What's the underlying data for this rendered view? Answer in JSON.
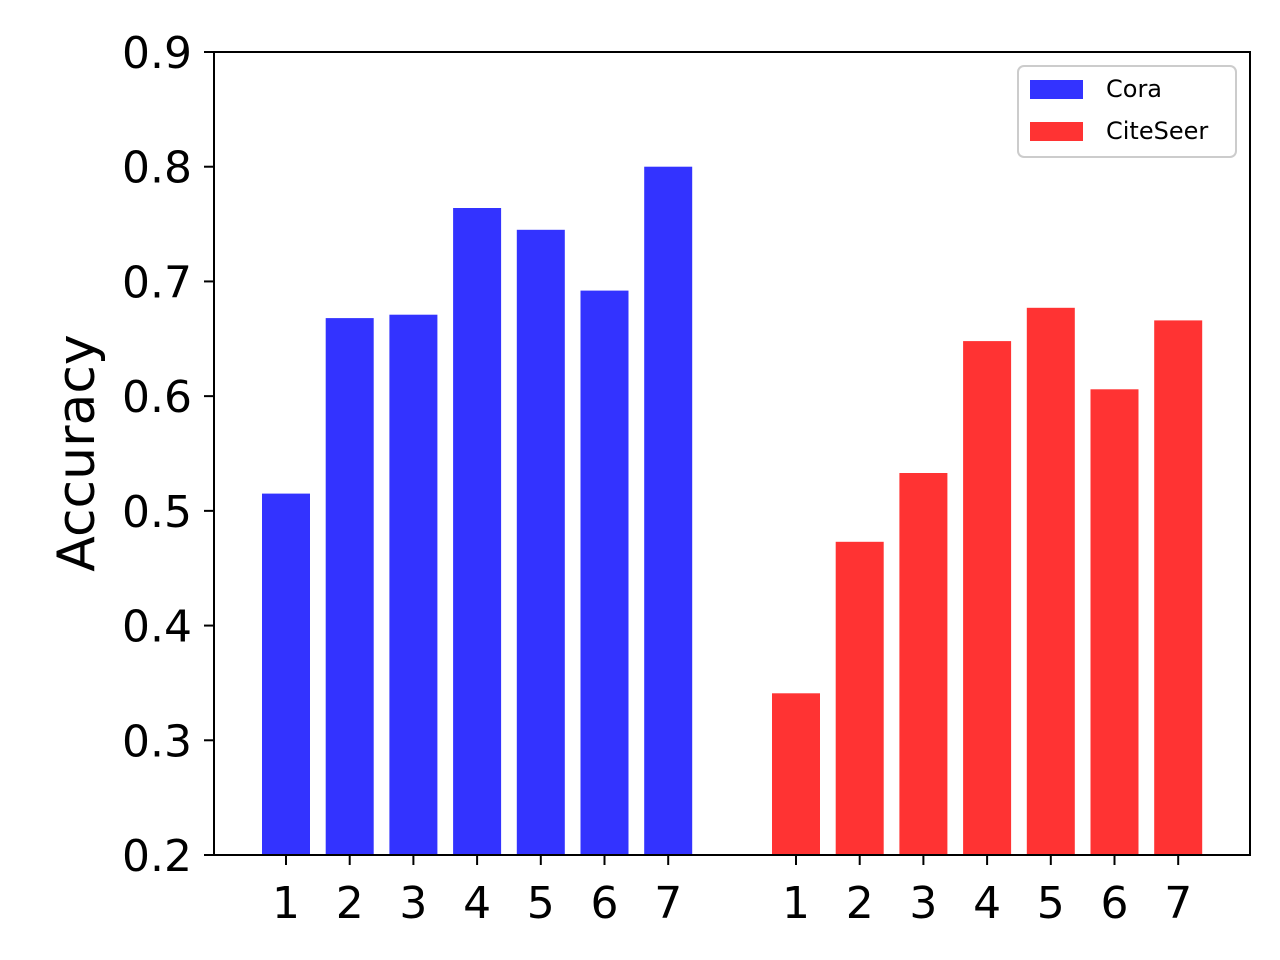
{
  "chart_data": {
    "type": "bar",
    "title": "",
    "xlabel": "",
    "ylabel": "Accuracy",
    "ylim": [
      0.2,
      0.9
    ],
    "yticks": [
      "0.2",
      "0.3",
      "0.4",
      "0.5",
      "0.6",
      "0.7",
      "0.8",
      "0.9"
    ],
    "grid": false,
    "legend_position": "top-right",
    "groups": [
      {
        "series": "Cora",
        "color": "#3333ff",
        "categories": [
          "1",
          "2",
          "3",
          "4",
          "5",
          "6",
          "7"
        ],
        "values": [
          0.515,
          0.668,
          0.671,
          0.764,
          0.745,
          0.692,
          0.8
        ]
      },
      {
        "series": "CiteSeer",
        "color": "#ff3333",
        "categories": [
          "1",
          "2",
          "3",
          "4",
          "5",
          "6",
          "7"
        ],
        "values": [
          0.341,
          0.473,
          0.533,
          0.648,
          0.677,
          0.606,
          0.666
        ]
      }
    ],
    "legend": [
      {
        "name": "Cora",
        "color": "#3333ff"
      },
      {
        "name": "CiteSeer",
        "color": "#ff3333"
      }
    ]
  }
}
